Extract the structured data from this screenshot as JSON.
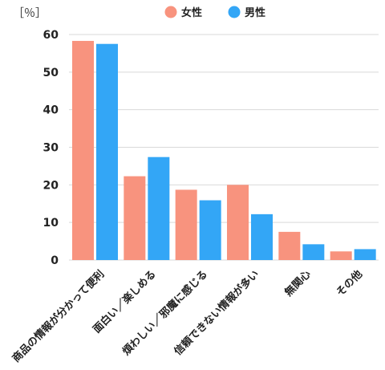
{
  "chart_data": {
    "type": "bar",
    "unit_label": "［％］",
    "categories": [
      "商品の情報が分かって便利",
      "面白い／楽しめる",
      "煩わしい／邪魔に感じる",
      "信頼できない情報が多い",
      "無関心",
      "その他"
    ],
    "series": [
      {
        "name": "女性",
        "color": "#F8937E",
        "values": [
          58.3,
          22.3,
          18.7,
          20.0,
          7.5,
          2.3
        ]
      },
      {
        "name": "男性",
        "color": "#33A6F6",
        "values": [
          57.5,
          27.4,
          15.9,
          12.2,
          4.2,
          2.9
        ]
      }
    ],
    "yticks": [
      0,
      10,
      20,
      30,
      40,
      50,
      60
    ],
    "ylim": [
      0,
      60
    ],
    "grid": true,
    "legend_position": "top"
  }
}
